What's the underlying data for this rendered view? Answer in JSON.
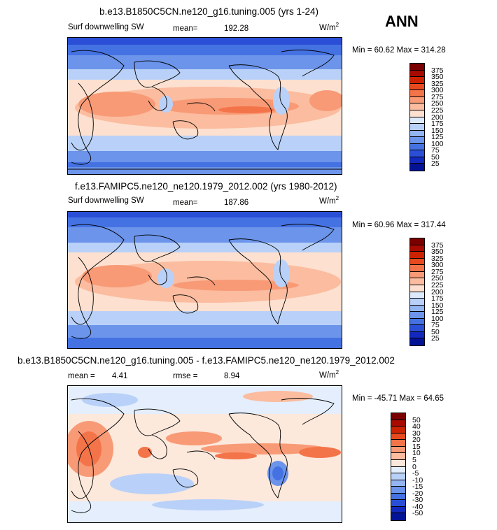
{
  "season_label": "ANN",
  "units_main": "W/m",
  "units_sup": "2",
  "panels": [
    {
      "title": "b.e13.B1850C5CN.ne120_g16.tuning.005 (yrs 1-24)",
      "left_label": "Surf downwelling SW",
      "stat_label": "mean=",
      "stat_value": "192.28",
      "minmax": "Min =  60.62 Max = 314.28",
      "levels": [
        "375",
        "350",
        "325",
        "300",
        "275",
        "250",
        "225",
        "200",
        "175",
        "150",
        "125",
        "100",
        "75",
        "50",
        "25"
      ],
      "colors": [
        "#7a0000",
        "#a80a00",
        "#cc2200",
        "#e84a1f",
        "#f4744a",
        "#f89a76",
        "#fbbc9f",
        "#fde0cf",
        "#ddeafc",
        "#b9d1f8",
        "#93b5f2",
        "#6b94ea",
        "#4572e2",
        "#2a4fd6",
        "#1328bc",
        "#041296"
      ]
    },
    {
      "title": "f.e13.FAMIPC5.ne120_ne120.1979_2012.002 (yrs 1980-2012)",
      "left_label": "Surf downwelling SW",
      "stat_label": "mean=",
      "stat_value": "187.86",
      "minmax": "Min =  60.96 Max = 317.44",
      "levels": [
        "375",
        "350",
        "325",
        "300",
        "275",
        "250",
        "225",
        "200",
        "175",
        "150",
        "125",
        "100",
        "75",
        "50",
        "25"
      ],
      "colors": [
        "#7a0000",
        "#a80a00",
        "#cc2200",
        "#e84a1f",
        "#f4744a",
        "#f89a76",
        "#fbbc9f",
        "#fde0cf",
        "#ddeafc",
        "#b9d1f8",
        "#93b5f2",
        "#6b94ea",
        "#4572e2",
        "#2a4fd6",
        "#1328bc",
        "#041296"
      ]
    },
    {
      "title": "b.e13.B1850C5CN.ne120_g16.tuning.005 - f.e13.FAMIPC5.ne120_ne120.1979_2012.002",
      "left_label": "mean =",
      "left_value": "4.41",
      "stat_label": "rmse =",
      "stat_value": "8.94",
      "minmax": "Min = -45.71 Max =  64.65",
      "levels": [
        "50",
        "40",
        "30",
        "20",
        "15",
        "10",
        "5",
        "0",
        "-5",
        "-10",
        "-15",
        "-20",
        "-30",
        "-40",
        "-50"
      ],
      "colors": [
        "#7a0000",
        "#a80a00",
        "#cc2200",
        "#e84a1f",
        "#f4744a",
        "#f89a76",
        "#fbbc9f",
        "#fde8dc",
        "#e4eefc",
        "#b9d1f8",
        "#93b5f2",
        "#6b94ea",
        "#4572e2",
        "#2a4fd6",
        "#1328bc",
        "#041296"
      ]
    }
  ]
}
